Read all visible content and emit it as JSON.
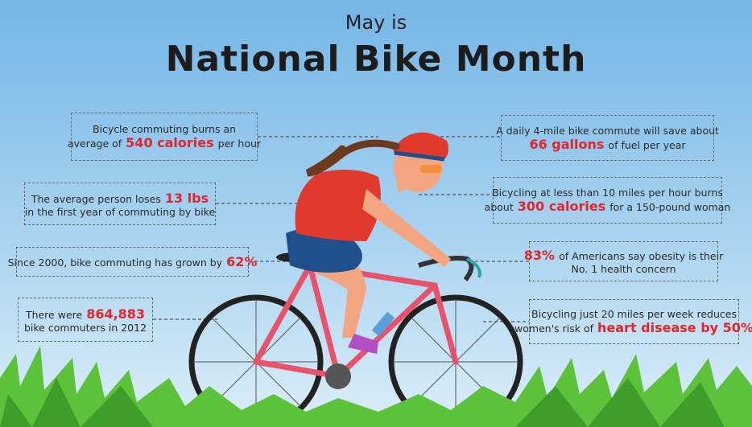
{
  "header": {
    "pretitle": "May is",
    "title": "National Bike Month"
  },
  "facts": [
    {
      "lines": [
        [
          {
            "text": "Bicycle commuting burns an"
          }
        ],
        [
          {
            "text": "average of"
          },
          {
            "text": "540 calories",
            "strong": true
          },
          {
            "text": "per hour"
          }
        ]
      ]
    },
    {
      "lines": [
        [
          {
            "text": "The average person loses"
          },
          {
            "text": "13 lbs",
            "strong": true
          }
        ],
        [
          {
            "text": "in the first year of commuting by bike"
          }
        ]
      ]
    },
    {
      "lines": [
        [
          {
            "text": "Since 2000, bike commuting has grown by"
          },
          {
            "text": "62%",
            "strong": true
          }
        ]
      ]
    },
    {
      "lines": [
        [
          {
            "text": "There were"
          },
          {
            "text": "864,883",
            "strong": true
          }
        ],
        [
          {
            "text": "bike commuters in 2012"
          }
        ]
      ]
    },
    {
      "lines": [
        [
          {
            "text": "A daily 4-mile bike commute will save about"
          }
        ],
        [
          {
            "text": "66 gallons",
            "strong": true
          },
          {
            "text": "of fuel per year"
          }
        ]
      ]
    },
    {
      "lines": [
        [
          {
            "text": "Bicycling at less than 10 miles per hour burns"
          }
        ],
        [
          {
            "text": "about"
          },
          {
            "text": "300 calories",
            "strong": true
          },
          {
            "text": "for a 150-pound woman"
          }
        ]
      ]
    },
    {
      "lines": [
        [
          {
            "text": "83%",
            "strong": true
          },
          {
            "text": "of Americans say obesity is their"
          }
        ],
        [
          {
            "text": "No. 1 health concern"
          }
        ]
      ]
    },
    {
      "lines": [
        [
          {
            "text": "Bicycling just 20 miles per week reduces"
          }
        ],
        [
          {
            "text": "women's risk of"
          },
          {
            "text": "heart disease by 50%",
            "strong": true
          }
        ]
      ]
    }
  ]
}
